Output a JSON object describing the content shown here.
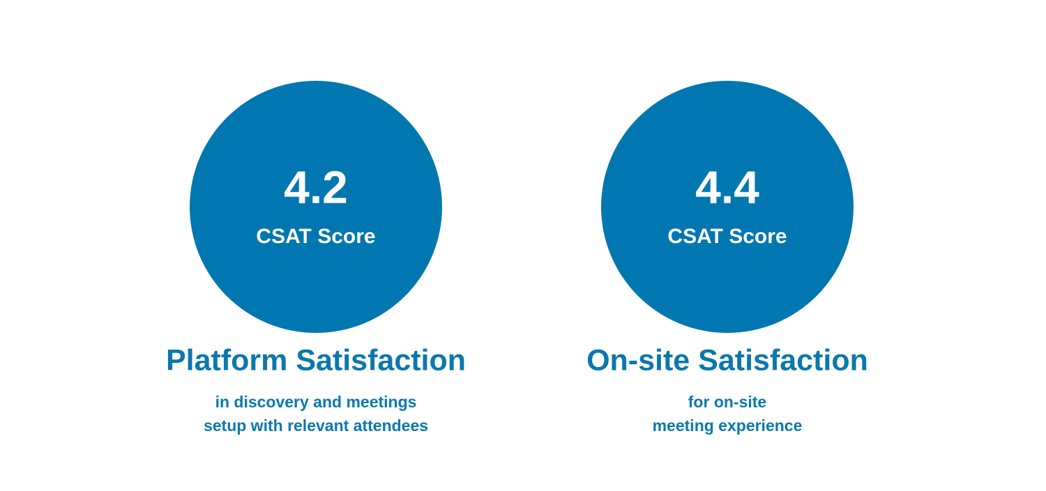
{
  "cards": [
    {
      "score": "4.2",
      "score_label": "CSAT Score",
      "title": "Platform Satisfaction",
      "description": [
        "in discovery and meetings",
        "setup with relevant attendees"
      ]
    },
    {
      "score": "4.4",
      "score_label": "CSAT Score",
      "title": "On-site Satisfaction",
      "description": [
        "for on-site",
        "meeting experience"
      ]
    }
  ]
}
